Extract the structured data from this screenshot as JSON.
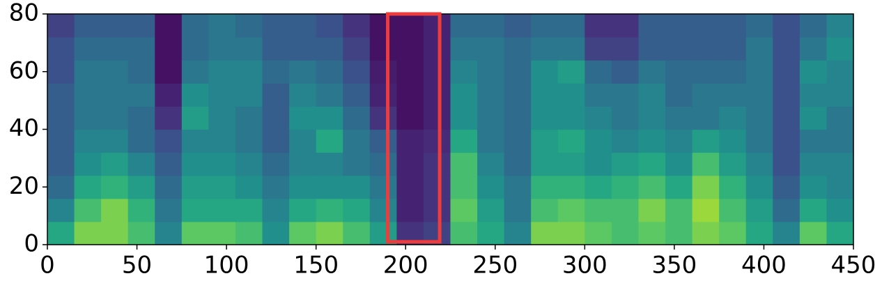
{
  "chart_data": {
    "type": "heatmap",
    "colormap": "viridis",
    "x_edges": [
      0,
      15,
      30,
      45,
      60,
      75,
      90,
      105,
      120,
      135,
      150,
      165,
      180,
      195,
      210,
      225,
      240,
      255,
      270,
      285,
      300,
      315,
      330,
      345,
      360,
      375,
      390,
      405,
      420,
      435,
      450
    ],
    "y_edges": [
      0,
      8,
      16,
      24,
      32,
      40,
      48,
      56,
      64,
      72,
      80
    ],
    "z": [
      [
        0.6,
        0.8,
        0.8,
        0.7,
        0.45,
        0.75,
        0.75,
        0.7,
        0.5,
        0.75,
        0.8,
        0.7,
        0.55,
        0.15,
        0.2,
        0.7,
        0.6,
        0.45,
        0.8,
        0.8,
        0.75,
        0.7,
        0.75,
        0.7,
        0.8,
        0.75,
        0.6,
        0.45,
        0.75,
        0.6
      ],
      [
        0.45,
        0.7,
        0.8,
        0.65,
        0.4,
        0.6,
        0.6,
        0.6,
        0.45,
        0.6,
        0.65,
        0.6,
        0.45,
        0.1,
        0.15,
        0.75,
        0.55,
        0.4,
        0.7,
        0.75,
        0.7,
        0.7,
        0.8,
        0.7,
        0.85,
        0.7,
        0.55,
        0.35,
        0.6,
        0.5
      ],
      [
        0.35,
        0.6,
        0.65,
        0.55,
        0.35,
        0.55,
        0.55,
        0.5,
        0.4,
        0.5,
        0.5,
        0.5,
        0.4,
        0.1,
        0.15,
        0.7,
        0.5,
        0.4,
        0.65,
        0.65,
        0.6,
        0.65,
        0.7,
        0.6,
        0.8,
        0.65,
        0.5,
        0.3,
        0.5,
        0.45
      ],
      [
        0.3,
        0.5,
        0.55,
        0.45,
        0.3,
        0.5,
        0.5,
        0.45,
        0.35,
        0.45,
        0.45,
        0.4,
        0.35,
        0.1,
        0.15,
        0.7,
        0.45,
        0.35,
        0.55,
        0.55,
        0.5,
        0.55,
        0.6,
        0.5,
        0.7,
        0.55,
        0.45,
        0.25,
        0.45,
        0.45
      ],
      [
        0.3,
        0.45,
        0.45,
        0.35,
        0.25,
        0.45,
        0.45,
        0.4,
        0.3,
        0.45,
        0.6,
        0.4,
        0.3,
        0.1,
        0.12,
        0.6,
        0.4,
        0.35,
        0.55,
        0.6,
        0.5,
        0.45,
        0.5,
        0.45,
        0.55,
        0.5,
        0.4,
        0.25,
        0.4,
        0.4
      ],
      [
        0.3,
        0.4,
        0.4,
        0.35,
        0.15,
        0.55,
        0.45,
        0.4,
        0.3,
        0.5,
        0.5,
        0.35,
        0.15,
        0.05,
        0.1,
        0.5,
        0.4,
        0.35,
        0.5,
        0.5,
        0.45,
        0.4,
        0.45,
        0.4,
        0.4,
        0.45,
        0.4,
        0.25,
        0.5,
        0.4
      ],
      [
        0.3,
        0.4,
        0.4,
        0.4,
        0.1,
        0.5,
        0.45,
        0.45,
        0.3,
        0.45,
        0.4,
        0.3,
        0.1,
        0.05,
        0.1,
        0.5,
        0.4,
        0.35,
        0.5,
        0.5,
        0.4,
        0.4,
        0.45,
        0.35,
        0.4,
        0.4,
        0.4,
        0.25,
        0.45,
        0.45
      ],
      [
        0.25,
        0.4,
        0.4,
        0.35,
        0.05,
        0.4,
        0.45,
        0.45,
        0.35,
        0.4,
        0.35,
        0.25,
        0.08,
        0.05,
        0.1,
        0.45,
        0.4,
        0.35,
        0.5,
        0.55,
        0.35,
        0.3,
        0.4,
        0.35,
        0.35,
        0.35,
        0.4,
        0.25,
        0.5,
        0.45
      ],
      [
        0.25,
        0.35,
        0.35,
        0.35,
        0.05,
        0.35,
        0.4,
        0.4,
        0.3,
        0.3,
        0.3,
        0.2,
        0.05,
        0.05,
        0.1,
        0.4,
        0.4,
        0.35,
        0.4,
        0.4,
        0.2,
        0.2,
        0.3,
        0.3,
        0.3,
        0.3,
        0.4,
        0.25,
        0.4,
        0.5
      ],
      [
        0.2,
        0.3,
        0.3,
        0.3,
        0.05,
        0.35,
        0.4,
        0.35,
        0.3,
        0.3,
        0.25,
        0.15,
        0.05,
        0.05,
        0.1,
        0.35,
        0.35,
        0.3,
        0.35,
        0.35,
        0.15,
        0.15,
        0.3,
        0.3,
        0.3,
        0.3,
        0.35,
        0.25,
        0.35,
        0.45
      ]
    ],
    "xlim": [
      0,
      450
    ],
    "ylim": [
      0,
      80
    ],
    "xticks": [
      0,
      50,
      100,
      150,
      200,
      250,
      300,
      350,
      400,
      450
    ],
    "yticks": [
      0,
      20,
      40,
      60,
      80
    ],
    "highlight": {
      "xlim": [
        190,
        219
      ],
      "ylim": [
        1,
        80
      ],
      "color": "#ee3b3b"
    }
  }
}
